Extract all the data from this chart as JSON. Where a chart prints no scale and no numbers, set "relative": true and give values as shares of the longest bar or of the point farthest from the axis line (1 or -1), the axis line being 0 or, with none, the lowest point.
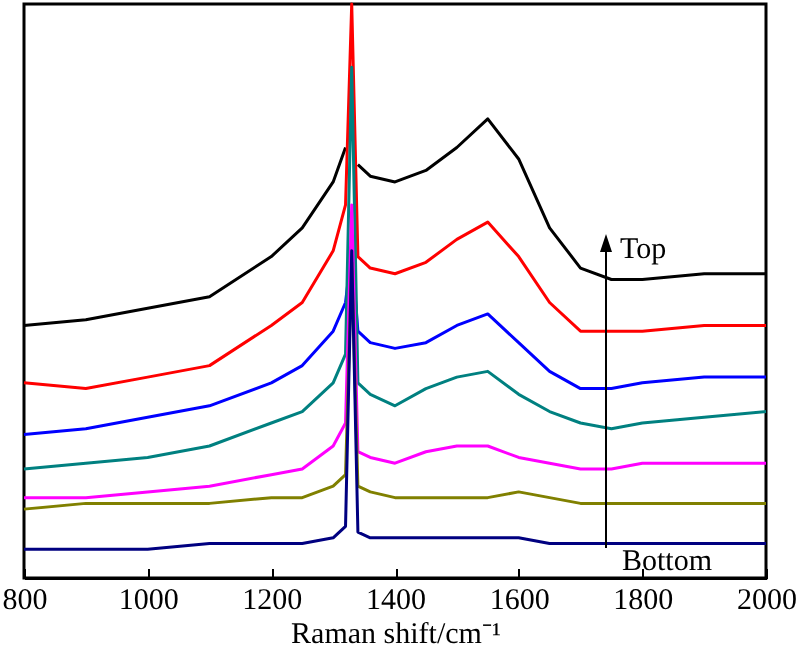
{
  "chart_data": {
    "type": "line",
    "relative": true,
    "xlabel": "Raman shift/cm⁻¹",
    "xlim": [
      800,
      2000
    ],
    "xticks": [
      800,
      1000,
      1200,
      1400,
      1600,
      1800,
      2000
    ],
    "grid": false,
    "annotations": [
      "Top",
      "Bottom"
    ],
    "x": [
      800,
      900,
      1000,
      1100,
      1200,
      1250,
      1300,
      1320,
      1330,
      1340,
      1360,
      1400,
      1450,
      1500,
      1550,
      1600,
      1650,
      1700,
      1750,
      1800,
      1900,
      2000
    ],
    "series": [
      {
        "color": "#000000",
        "values": [
          0.44,
          0.45,
          0.47,
          0.49,
          0.56,
          0.61,
          0.69,
          0.75,
          null,
          0.72,
          0.7,
          0.69,
          0.71,
          0.75,
          0.8,
          0.73,
          0.61,
          0.54,
          0.52,
          0.52,
          0.53,
          0.53
        ]
      },
      {
        "color": "#ff0000",
        "values": [
          0.34,
          0.33,
          0.35,
          0.37,
          0.44,
          0.48,
          0.57,
          0.65,
          1.0,
          0.56,
          0.54,
          0.53,
          0.55,
          0.59,
          0.62,
          0.56,
          0.48,
          0.43,
          0.43,
          0.43,
          0.44,
          0.44
        ]
      },
      {
        "color": "#0000ff",
        "values": [
          0.25,
          0.26,
          0.28,
          0.3,
          0.34,
          0.37,
          0.43,
          0.48,
          0.57,
          0.43,
          0.41,
          0.4,
          0.41,
          0.44,
          0.46,
          0.41,
          0.36,
          0.33,
          0.33,
          0.34,
          0.35,
          0.35
        ]
      },
      {
        "color": "#008080",
        "values": [
          0.19,
          0.2,
          0.21,
          0.23,
          0.27,
          0.29,
          0.34,
          0.39,
          0.89,
          0.34,
          0.32,
          0.3,
          0.33,
          0.35,
          0.36,
          0.32,
          0.29,
          0.27,
          0.26,
          0.27,
          0.28,
          0.29
        ]
      },
      {
        "color": "#ff00ff",
        "values": [
          0.14,
          0.14,
          0.15,
          0.16,
          0.18,
          0.19,
          0.23,
          0.27,
          0.65,
          0.22,
          0.21,
          0.2,
          0.22,
          0.23,
          0.23,
          0.21,
          0.2,
          0.19,
          0.19,
          0.2,
          0.2,
          0.2
        ]
      },
      {
        "color": "#808000",
        "values": [
          0.12,
          0.13,
          0.13,
          0.13,
          0.14,
          0.14,
          0.16,
          0.18,
          0.55,
          0.16,
          0.15,
          0.14,
          0.14,
          0.14,
          0.14,
          0.15,
          0.14,
          0.13,
          0.13,
          0.13,
          0.13,
          0.13
        ]
      },
      {
        "color": "#000080",
        "values": [
          0.05,
          0.05,
          0.05,
          0.06,
          0.06,
          0.06,
          0.07,
          0.09,
          0.57,
          0.08,
          0.07,
          0.07,
          0.07,
          0.07,
          0.07,
          0.07,
          0.06,
          0.06,
          0.06,
          0.06,
          0.06,
          0.06
        ]
      }
    ]
  }
}
